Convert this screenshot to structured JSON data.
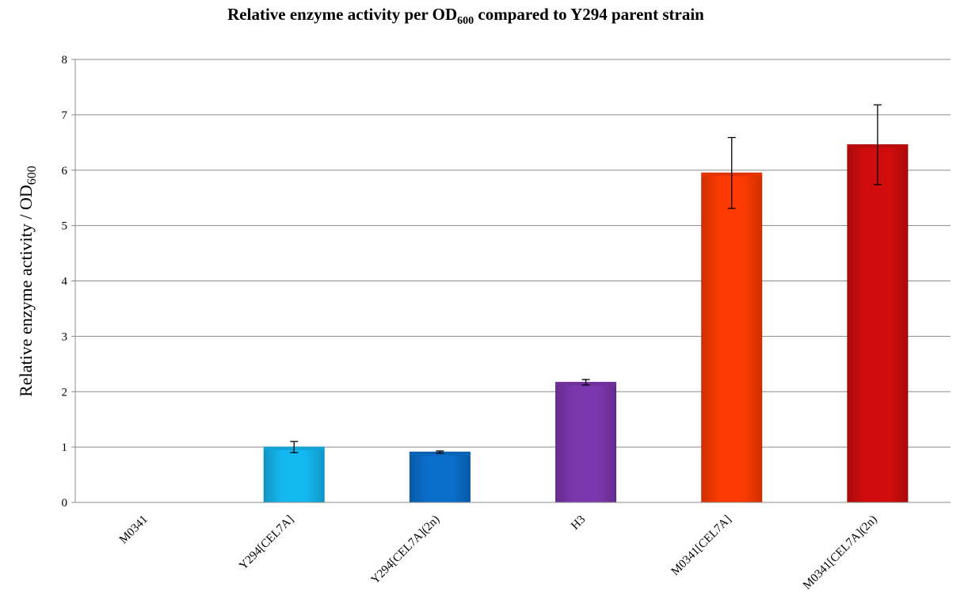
{
  "chart_data": {
    "type": "bar",
    "title": {
      "pre": "Relative enzyme activity  per OD",
      "sub": "600",
      "post": " compared to Y294 parent strain"
    },
    "ylabel": {
      "pre": "Relative enzyme activity / OD",
      "sub": "600"
    },
    "xlabel": "",
    "ylim": [
      0,
      8
    ],
    "yticks": [
      0,
      1,
      2,
      3,
      4,
      5,
      6,
      7,
      8
    ],
    "grid": true,
    "legend": "none",
    "categories": [
      "M0341",
      "Y294[CEL7A]",
      "Y294[CEL7A](2n)",
      "H3",
      "M0341[CEL7A]",
      "M0341[CEL7A](2n)"
    ],
    "values": [
      0,
      1.0,
      0.91,
      2.17,
      5.95,
      6.46
    ],
    "error_bars": [
      0,
      0.1,
      0.02,
      0.05,
      0.64,
      0.72
    ],
    "colors": [
      "#ffffff",
      "#14b8f0",
      "#0a6fcc",
      "#7c36ae",
      "#fd3a03",
      "#d10c0c"
    ]
  }
}
